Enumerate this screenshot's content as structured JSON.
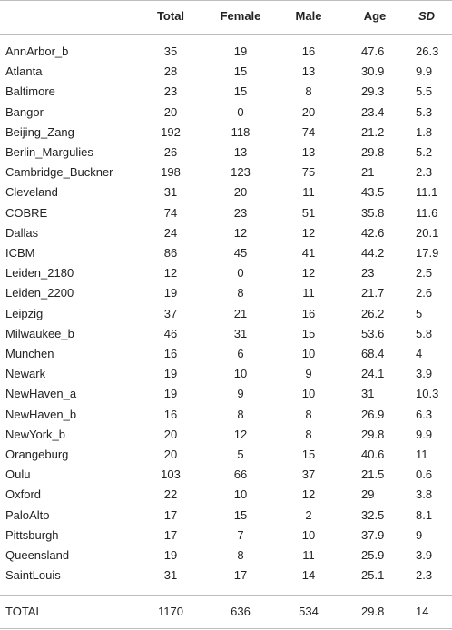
{
  "table": {
    "header": [
      "Total",
      "Female",
      "Male",
      "Age",
      "SD"
    ],
    "rows": [
      [
        "AnnArbor_b",
        35,
        19,
        16,
        47.6,
        26.3
      ],
      [
        "Atlanta",
        28,
        15,
        13,
        30.9,
        9.9
      ],
      [
        "Baltimore",
        23,
        15,
        8,
        29.3,
        5.5
      ],
      [
        "Bangor",
        20,
        0,
        20,
        23.4,
        5.3
      ],
      [
        "Beijing_Zang",
        192,
        118,
        74,
        21.2,
        1.8
      ],
      [
        "Berlin_Margulies",
        26,
        13,
        13,
        29.8,
        5.2
      ],
      [
        "Cambridge_Buckner",
        198,
        123,
        75,
        21,
        2.3
      ],
      [
        "Cleveland",
        31,
        20,
        11,
        43.5,
        11.1
      ],
      [
        "COBRE",
        74,
        23,
        51,
        35.8,
        11.6
      ],
      [
        "Dallas",
        24,
        12,
        12,
        42.6,
        20.1
      ],
      [
        "ICBM",
        86,
        45,
        41,
        44.2,
        17.9
      ],
      [
        "Leiden_2180",
        12,
        0,
        12,
        23,
        2.5
      ],
      [
        "Leiden_2200",
        19,
        8,
        11,
        21.7,
        2.6
      ],
      [
        "Leipzig",
        37,
        21,
        16,
        26.2,
        5
      ],
      [
        "Milwaukee_b",
        46,
        31,
        15,
        53.6,
        5.8
      ],
      [
        "Munchen",
        16,
        6,
        10,
        68.4,
        4
      ],
      [
        "Newark",
        19,
        10,
        9,
        24.1,
        3.9
      ],
      [
        "NewHaven_a",
        19,
        9,
        10,
        31,
        10.3
      ],
      [
        "NewHaven_b",
        16,
        8,
        8,
        26.9,
        6.3
      ],
      [
        "NewYork_b",
        20,
        12,
        8,
        29.8,
        9.9
      ],
      [
        "Orangeburg",
        20,
        5,
        15,
        40.6,
        11
      ],
      [
        "Oulu",
        103,
        66,
        37,
        21.5,
        0.6
      ],
      [
        "Oxford",
        22,
        10,
        12,
        29,
        3.8
      ],
      [
        "PaloAlto",
        17,
        15,
        2,
        32.5,
        8.1
      ],
      [
        "Pittsburgh",
        17,
        7,
        10,
        37.9,
        9
      ],
      [
        "Queensland",
        19,
        8,
        11,
        25.9,
        3.9
      ],
      [
        "SaintLouis",
        31,
        17,
        14,
        25.1,
        2.3
      ]
    ],
    "total": [
      "TOTAL",
      1170,
      636,
      534,
      29.8,
      14
    ]
  }
}
